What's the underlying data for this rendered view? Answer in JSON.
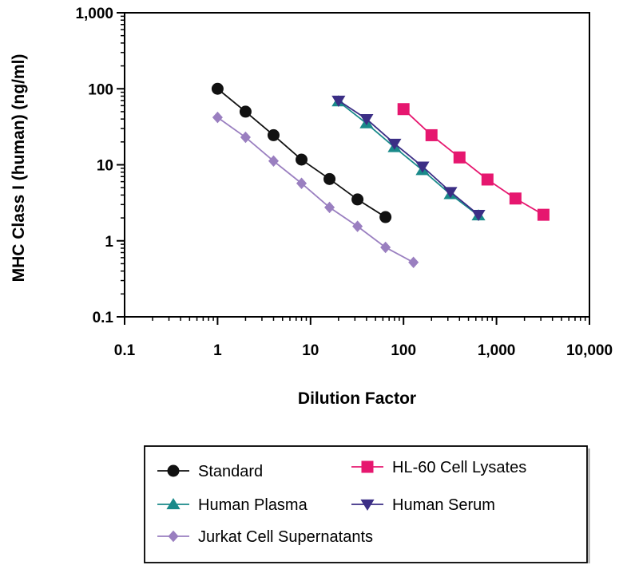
{
  "chart_data": {
    "type": "scatter",
    "title": "",
    "xlabel": "Dilution Factor",
    "ylabel": "MHC Class I (human) (ng/ml)",
    "xscale": "log",
    "yscale": "log",
    "xlim": [
      0.1,
      10000
    ],
    "ylim": [
      0.1,
      1000
    ],
    "x_ticks": [
      {
        "value": 0.1,
        "label": "0.1"
      },
      {
        "value": 1,
        "label": "1"
      },
      {
        "value": 10,
        "label": "10"
      },
      {
        "value": 100,
        "label": "100"
      },
      {
        "value": 1000,
        "label": "1,000"
      },
      {
        "value": 10000,
        "label": "10,000"
      }
    ],
    "y_ticks": [
      {
        "value": 0.1,
        "label": "0.1"
      },
      {
        "value": 1,
        "label": "1"
      },
      {
        "value": 10,
        "label": "10"
      },
      {
        "value": 100,
        "label": "100"
      },
      {
        "value": 1000,
        "label": "1,000"
      }
    ],
    "grid": false,
    "legend_position": "bottom",
    "series": [
      {
        "name": "Standard",
        "marker": "circle",
        "color": "#111111",
        "x": [
          1,
          2,
          4,
          8,
          16,
          32,
          64
        ],
        "y": [
          100,
          50,
          24.5,
          11.7,
          6.5,
          3.5,
          2.05
        ]
      },
      {
        "name": "HL-60 Cell Lysates",
        "marker": "square",
        "color": "#e6176f",
        "x": [
          100,
          200,
          400,
          800,
          1600,
          3200
        ],
        "y": [
          54,
          24.5,
          12.5,
          6.4,
          3.6,
          2.2
        ]
      },
      {
        "name": "Human Plasma",
        "marker": "triangle-up",
        "color": "#1a8a8a",
        "x": [
          20,
          40,
          80,
          160,
          320,
          640
        ],
        "y": [
          68,
          35,
          17,
          8.5,
          4.1,
          2.15
        ]
      },
      {
        "name": "Human Serum",
        "marker": "triangle-down",
        "color": "#3b2e85",
        "x": [
          20,
          40,
          80,
          160,
          320,
          640
        ],
        "y": [
          70,
          40,
          19,
          9.5,
          4.4,
          2.2
        ]
      },
      {
        "name": "Jurkat Cell Supernatants",
        "marker": "diamond",
        "color": "#9a7fc0",
        "x": [
          1,
          2,
          4,
          8,
          16,
          32,
          64,
          128
        ],
        "y": [
          42,
          23,
          11.2,
          5.7,
          2.75,
          1.55,
          0.82,
          0.52
        ]
      }
    ]
  }
}
